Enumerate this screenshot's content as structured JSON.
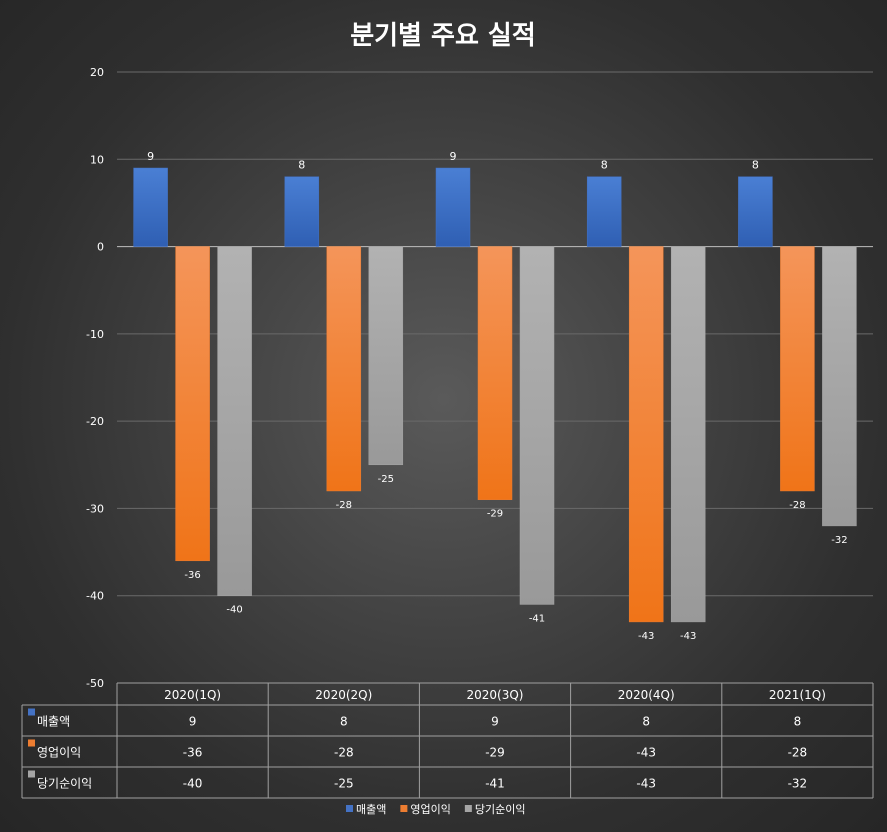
{
  "chart_data": {
    "type": "bar",
    "title": "분기별 주요 실적",
    "categories": [
      "2020(1Q)",
      "2020(2Q)",
      "2020(3Q)",
      "2020(4Q)",
      "2021(1Q)"
    ],
    "series": [
      {
        "name": "매출액",
        "values": [
          9,
          8,
          9,
          8,
          8
        ],
        "color": "#4472c4"
      },
      {
        "name": "영업이익",
        "values": [
          -36,
          -28,
          -29,
          -43,
          -28
        ],
        "color": "#ed7d31"
      },
      {
        "name": "당기순이익",
        "values": [
          -40,
          -25,
          -41,
          -43,
          -32
        ],
        "color": "#a5a5a5"
      }
    ],
    "ylim": [
      -50,
      20
    ],
    "yticks": [
      20,
      10,
      0,
      -10,
      -20,
      -30,
      -40,
      -50
    ],
    "grid": true,
    "legend": "bottom",
    "data_table": true
  }
}
